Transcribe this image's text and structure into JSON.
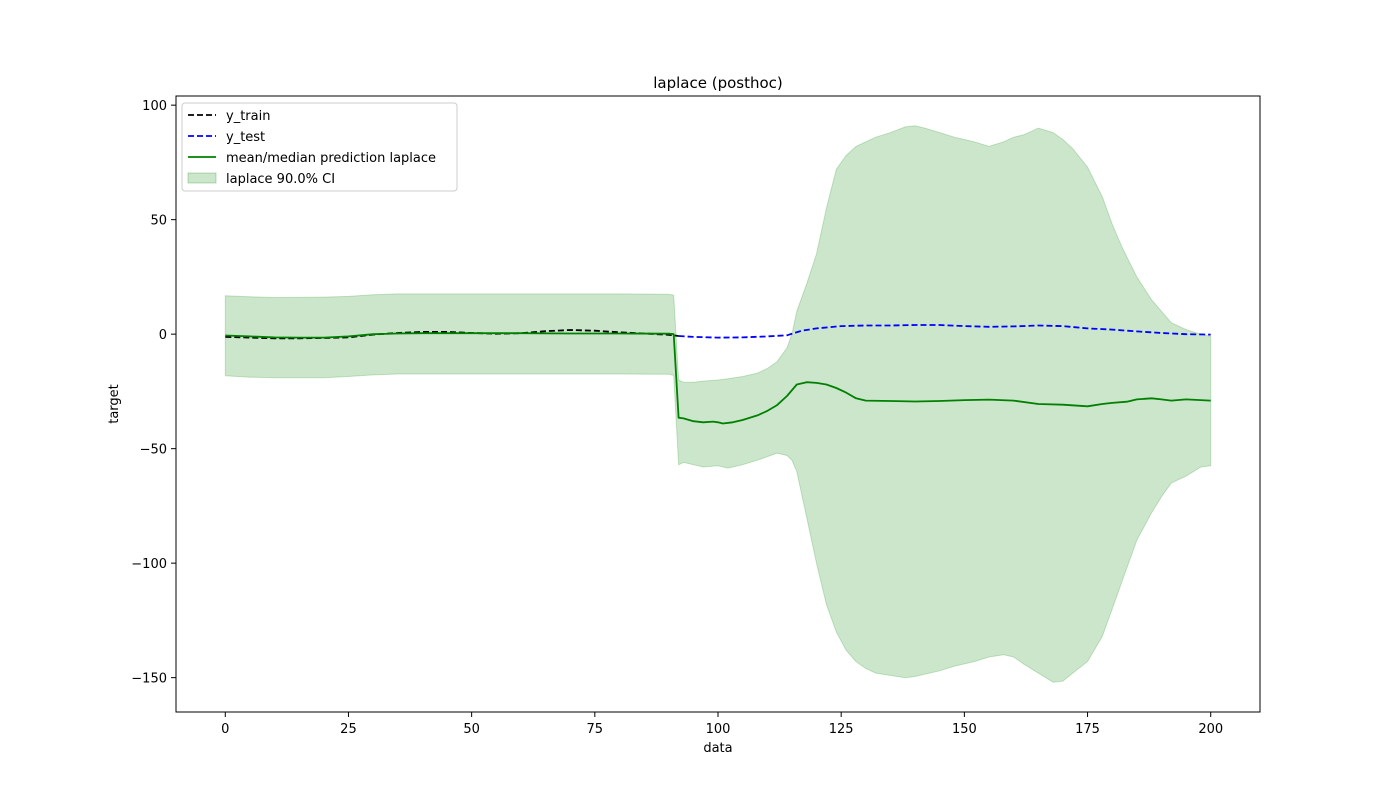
{
  "chart_data": {
    "type": "line",
    "title": "laplace (posthoc)",
    "xlabel": "data",
    "ylabel": "target",
    "xlim": [
      -10,
      210
    ],
    "ylim": [
      -165,
      104
    ],
    "xticks": [
      0,
      25,
      50,
      75,
      100,
      125,
      150,
      175,
      200
    ],
    "xtick_labels": [
      "0",
      "25",
      "50",
      "75",
      "100",
      "125",
      "150",
      "175",
      "200"
    ],
    "yticks": [
      -150,
      -100,
      -50,
      0,
      50,
      100
    ],
    "ytick_labels": [
      "−150",
      "−100",
      "−50",
      "0",
      "50",
      "100"
    ],
    "grid": false,
    "legend_position": "top-left",
    "colors": {
      "train": "#000000",
      "test": "#0000ff",
      "mean": "#008000",
      "band": "#008000"
    },
    "legend": [
      {
        "label": "y_train",
        "kind": "dashed",
        "color": "#000000"
      },
      {
        "label": "y_test",
        "kind": "dashed",
        "color": "#0000ff"
      },
      {
        "label": "mean/median prediction laplace",
        "kind": "solid",
        "color": "#008000"
      },
      {
        "label": "laplace 90.0% CI",
        "kind": "fill",
        "color": "#008000"
      }
    ],
    "series": [
      {
        "key": "train",
        "style": "dashed",
        "points": [
          [
            0,
            -1.2
          ],
          [
            5,
            -1.5
          ],
          [
            10,
            -1.8
          ],
          [
            15,
            -1.8
          ],
          [
            20,
            -1.7
          ],
          [
            25,
            -1.4
          ],
          [
            30,
            -0.2
          ],
          [
            35,
            0.5
          ],
          [
            40,
            1
          ],
          [
            45,
            1
          ],
          [
            50,
            0.5
          ],
          [
            55,
            0.2
          ],
          [
            60,
            0.4
          ],
          [
            65,
            1.3
          ],
          [
            70,
            1.8
          ],
          [
            75,
            1.5
          ],
          [
            80,
            0.8
          ],
          [
            85,
            0.3
          ],
          [
            90,
            -0.3
          ],
          [
            92,
            -0.8
          ]
        ]
      },
      {
        "key": "test",
        "style": "dashed",
        "points": [
          [
            92,
            -0.8
          ],
          [
            95,
            -1.2
          ],
          [
            100,
            -1.5
          ],
          [
            105,
            -1.4
          ],
          [
            110,
            -1
          ],
          [
            114,
            -0.5
          ],
          [
            117,
            1.5
          ],
          [
            120,
            2.5
          ],
          [
            125,
            3.5
          ],
          [
            130,
            3.8
          ],
          [
            135,
            3.8
          ],
          [
            140,
            4
          ],
          [
            145,
            4
          ],
          [
            150,
            3.5
          ],
          [
            155,
            3.2
          ],
          [
            160,
            3.4
          ],
          [
            165,
            3.8
          ],
          [
            170,
            3.5
          ],
          [
            175,
            2.5
          ],
          [
            180,
            2
          ],
          [
            185,
            1.2
          ],
          [
            190,
            0.5
          ],
          [
            195,
            0
          ],
          [
            200,
            -0.2
          ]
        ]
      },
      {
        "key": "mean",
        "style": "solid",
        "points": [
          [
            0,
            -0.6
          ],
          [
            5,
            -1
          ],
          [
            10,
            -1.4
          ],
          [
            15,
            -1.5
          ],
          [
            20,
            -1.5
          ],
          [
            25,
            -1
          ],
          [
            30,
            0
          ],
          [
            35,
            0.3
          ],
          [
            40,
            0.4
          ],
          [
            50,
            0.4
          ],
          [
            60,
            0.4
          ],
          [
            70,
            0.3
          ],
          [
            80,
            0.3
          ],
          [
            90,
            0.2
          ],
          [
            91,
            0
          ],
          [
            92,
            -36.5
          ],
          [
            93,
            -36.8
          ],
          [
            95,
            -38
          ],
          [
            97,
            -38.5
          ],
          [
            99,
            -38.2
          ],
          [
            100,
            -38.5
          ],
          [
            101,
            -39
          ],
          [
            103,
            -38.5
          ],
          [
            105,
            -37.5
          ],
          [
            108,
            -35.5
          ],
          [
            110,
            -33.5
          ],
          [
            112,
            -31
          ],
          [
            114,
            -27
          ],
          [
            116,
            -22
          ],
          [
            118,
            -21
          ],
          [
            120,
            -21.3
          ],
          [
            122,
            -22
          ],
          [
            124,
            -23.5
          ],
          [
            126,
            -25.5
          ],
          [
            128,
            -28
          ],
          [
            130,
            -29
          ],
          [
            135,
            -29.2
          ],
          [
            140,
            -29.4
          ],
          [
            145,
            -29.2
          ],
          [
            150,
            -28.8
          ],
          [
            155,
            -28.6
          ],
          [
            160,
            -29
          ],
          [
            165,
            -30.5
          ],
          [
            170,
            -30.8
          ],
          [
            175,
            -31.5
          ],
          [
            178,
            -30.5
          ],
          [
            180,
            -30
          ],
          [
            183,
            -29.5
          ],
          [
            185,
            -28.5
          ],
          [
            188,
            -28
          ],
          [
            190,
            -28.5
          ],
          [
            192,
            -29
          ],
          [
            195,
            -28.5
          ],
          [
            200,
            -29
          ]
        ]
      }
    ],
    "band": {
      "x": [
        0,
        5,
        10,
        20,
        25,
        30,
        35,
        50,
        60,
        70,
        80,
        90,
        91,
        92,
        93,
        95,
        97,
        100,
        102,
        105,
        108,
        110,
        112,
        114,
        115,
        116,
        118,
        120,
        122,
        124,
        126,
        128,
        130,
        132,
        135,
        138,
        140,
        142,
        145,
        148,
        150,
        152,
        155,
        158,
        160,
        162,
        165,
        168,
        170,
        172,
        175,
        178,
        180,
        182,
        185,
        188,
        190,
        192,
        195,
        198,
        200
      ],
      "upper": [
        16.8,
        16.3,
        16,
        16.2,
        16.5,
        17.2,
        17.6,
        17.6,
        17.6,
        17.6,
        17.6,
        17.4,
        17,
        -20,
        -21,
        -21,
        -20.5,
        -20,
        -19.5,
        -18.5,
        -17,
        -15,
        -12,
        -6,
        0,
        10,
        22,
        35,
        55,
        72,
        78,
        82,
        84,
        86,
        88,
        90.5,
        91,
        90,
        88,
        86,
        85,
        84,
        82,
        84,
        86,
        87,
        90,
        88,
        85,
        81,
        73,
        60,
        48,
        38,
        25,
        15,
        10,
        5,
        2,
        0,
        -1
      ],
      "lower": [
        -18.2,
        -18.8,
        -19,
        -19,
        -18.5,
        -17.8,
        -17.4,
        -17.4,
        -17.4,
        -17.4,
        -17.4,
        -17.5,
        -18,
        -57,
        -56,
        -57,
        -58,
        -57.5,
        -58.5,
        -57,
        -55,
        -53.5,
        -52,
        -53,
        -55,
        -60,
        -80,
        -100,
        -118,
        -130,
        -138,
        -143,
        -146,
        -148,
        -149,
        -150,
        -149.5,
        -148.5,
        -147,
        -145,
        -144,
        -143,
        -141,
        -140,
        -141,
        -144,
        -148,
        -152,
        -151.5,
        -148,
        -143,
        -132,
        -120,
        -108,
        -90,
        -78,
        -71,
        -65,
        -62,
        -58,
        -57.5
      ]
    }
  }
}
